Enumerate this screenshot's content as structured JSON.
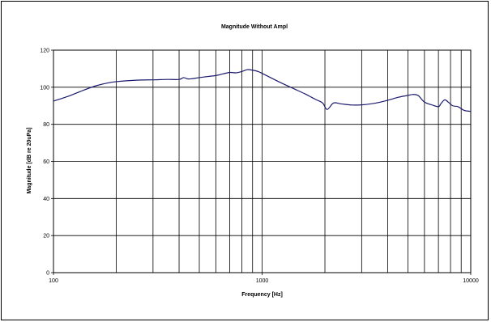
{
  "chart_data": {
    "type": "line",
    "title": "Magnitude Without Ampl",
    "xlabel": "Frequency [Hz]",
    "ylabel": "Magnitude [dB re 20uPa]",
    "x_scale": "log",
    "xlim": [
      100,
      10000
    ],
    "ylim": [
      0,
      120
    ],
    "x_ticks": [
      "100",
      "1000",
      "10000"
    ],
    "y_ticks": [
      "0",
      "20",
      "40",
      "60",
      "80",
      "100",
      "120"
    ],
    "grid": true,
    "legend": "none",
    "line_color": "#1a1a6e",
    "series": [
      {
        "x": [
          100,
          120,
          140,
          160,
          180,
          200,
          250,
          300,
          350,
          400,
          420,
          440,
          460,
          500,
          550,
          600,
          650,
          700,
          750,
          800,
          850,
          900,
          950,
          1000,
          1200,
          1400,
          1600,
          1800,
          1950,
          2050,
          2200,
          2400,
          2700,
          3000,
          3300,
          3700,
          4100,
          4500,
          5000,
          5300,
          5600,
          6000,
          6500,
          7000,
          7200,
          7500,
          7800,
          8200,
          8700,
          9300,
          10000
        ],
        "y": [
          92.5,
          95.5,
          98.5,
          100.8,
          102.2,
          103,
          103.8,
          104,
          104.2,
          104.2,
          105.2,
          104.5,
          104.6,
          105.2,
          105.8,
          106.3,
          107.2,
          108,
          107.8,
          108.5,
          109.5,
          109.2,
          108.6,
          107.5,
          103,
          99.5,
          96.5,
          93.5,
          91.5,
          88,
          91.5,
          91,
          90.4,
          90.5,
          91,
          92,
          93.3,
          94.6,
          95.6,
          96.1,
          95.5,
          92,
          90.5,
          89.5,
          91.2,
          93.2,
          92,
          90,
          89.5,
          87.5,
          87
        ]
      }
    ]
  }
}
